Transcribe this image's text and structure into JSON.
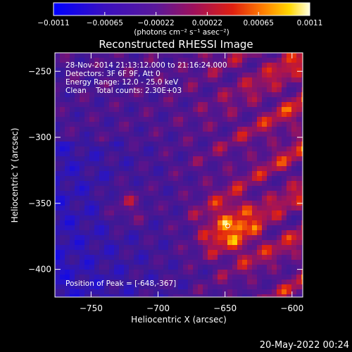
{
  "chart_data": {
    "type": "heatmap",
    "title": "Reconstructed RHESSI Image",
    "xlabel": "Heliocentric X (arcsec)",
    "ylabel": "Heliocentric Y (arcsec)",
    "xlim": [
      -777,
      -592
    ],
    "ylim": [
      -421,
      -236
    ],
    "x_ticks": [
      {
        "value": -750,
        "label": "−750"
      },
      {
        "value": -700,
        "label": "−700"
      },
      {
        "value": -650,
        "label": "−650"
      },
      {
        "value": -600,
        "label": "−600"
      }
    ],
    "y_ticks": [
      {
        "value": -250,
        "label": "−250"
      },
      {
        "value": -300,
        "label": "−300"
      },
      {
        "value": -350,
        "label": "−350"
      },
      {
        "value": -400,
        "label": "−400"
      }
    ],
    "colorbar": {
      "range": [
        -0.0011,
        0.0011
      ],
      "tick_labels": [
        "−0.0011",
        "−0.00065",
        "−0.00022",
        "0.00022",
        "0.00065",
        "0.0011"
      ],
      "unit_label": "(photons cm⁻² s⁻¹ asec⁻²)",
      "colors": [
        "#0000ff",
        "#4b0082",
        "#5a189a",
        "#8b008b",
        "#d01818",
        "#ff8000",
        "#ffd700",
        "#ffffcc"
      ]
    },
    "annotations": [
      "28-Nov-2014 21:13:12.000 to 21:16:24.000",
      "Detectors: 3F 6F 9F, Att 0",
      "Energy Range: 12.0 - 25.0 keV",
      "Clean    Total counts: 2.30E+03"
    ],
    "peak_label": "Position of Peak = [-648,-367]",
    "peak_position": [
      -648,
      -367
    ]
  },
  "timestamp": "20-May-2022 00:24"
}
